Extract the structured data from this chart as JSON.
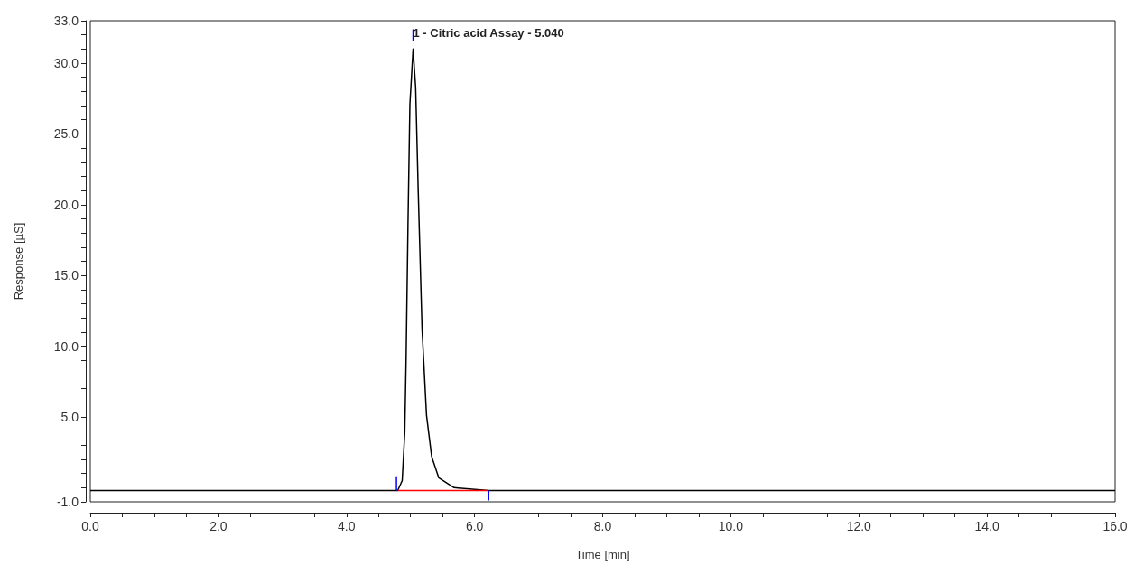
{
  "chart_data": {
    "type": "line",
    "xlabel": "Time [min]",
    "ylabel": "Response [µS]",
    "xlim": [
      0,
      16
    ],
    "ylim": [
      -1,
      33
    ],
    "xticks": [
      {
        "value": 0,
        "label": "0.0"
      },
      {
        "value": 0.5,
        "label": null
      },
      {
        "value": 1,
        "label": null
      },
      {
        "value": 1.5,
        "label": null
      },
      {
        "value": 2,
        "label": "2.0"
      },
      {
        "value": 2.5,
        "label": null
      },
      {
        "value": 3,
        "label": null
      },
      {
        "value": 3.5,
        "label": null
      },
      {
        "value": 4,
        "label": "4.0"
      },
      {
        "value": 4.5,
        "label": null
      },
      {
        "value": 5,
        "label": null
      },
      {
        "value": 5.5,
        "label": null
      },
      {
        "value": 6,
        "label": "6.0"
      },
      {
        "value": 6.5,
        "label": null
      },
      {
        "value": 7,
        "label": null
      },
      {
        "value": 7.5,
        "label": null
      },
      {
        "value": 8,
        "label": "8.0"
      },
      {
        "value": 8.5,
        "label": null
      },
      {
        "value": 9,
        "label": null
      },
      {
        "value": 9.5,
        "label": null
      },
      {
        "value": 10,
        "label": "10.0"
      },
      {
        "value": 10.5,
        "label": null
      },
      {
        "value": 11,
        "label": null
      },
      {
        "value": 11.5,
        "label": null
      },
      {
        "value": 12,
        "label": "12.0"
      },
      {
        "value": 12.5,
        "label": null
      },
      {
        "value": 13,
        "label": null
      },
      {
        "value": 13.5,
        "label": null
      },
      {
        "value": 14,
        "label": "14.0"
      },
      {
        "value": 14.5,
        "label": null
      },
      {
        "value": 15,
        "label": null
      },
      {
        "value": 15.5,
        "label": null
      },
      {
        "value": 16,
        "label": "16.0"
      }
    ],
    "yticks": [
      {
        "value": -1,
        "label": "-1.0"
      },
      {
        "value": 0,
        "label": null
      },
      {
        "value": 1,
        "label": null
      },
      {
        "value": 2,
        "label": null
      },
      {
        "value": 3,
        "label": null
      },
      {
        "value": 4,
        "label": null
      },
      {
        "value": 5,
        "label": "5.0"
      },
      {
        "value": 6,
        "label": null
      },
      {
        "value": 7,
        "label": null
      },
      {
        "value": 8,
        "label": null
      },
      {
        "value": 9,
        "label": null
      },
      {
        "value": 10,
        "label": "10.0"
      },
      {
        "value": 11,
        "label": null
      },
      {
        "value": 12,
        "label": null
      },
      {
        "value": 13,
        "label": null
      },
      {
        "value": 14,
        "label": null
      },
      {
        "value": 15,
        "label": "15.0"
      },
      {
        "value": 16,
        "label": null
      },
      {
        "value": 17,
        "label": null
      },
      {
        "value": 18,
        "label": null
      },
      {
        "value": 19,
        "label": null
      },
      {
        "value": 20,
        "label": "20.0"
      },
      {
        "value": 21,
        "label": null
      },
      {
        "value": 22,
        "label": null
      },
      {
        "value": 23,
        "label": null
      },
      {
        "value": 24,
        "label": null
      },
      {
        "value": 25,
        "label": "25.0"
      },
      {
        "value": 26,
        "label": null
      },
      {
        "value": 27,
        "label": null
      },
      {
        "value": 28,
        "label": null
      },
      {
        "value": 29,
        "label": null
      },
      {
        "value": 30,
        "label": "30.0"
      },
      {
        "value": 31,
        "label": null
      },
      {
        "value": 32,
        "label": null
      },
      {
        "value": 33,
        "label": "33.0"
      }
    ],
    "grid": false,
    "marker": "none",
    "series": [
      {
        "color": "#000000",
        "x": [
          0,
          2,
          4,
          4.8,
          4.87,
          4.91,
          4.93,
          4.96,
          4.99,
          5.04,
          5.08,
          5.12,
          5.18,
          5.25,
          5.33,
          5.44,
          5.68,
          6.22,
          8,
          10,
          12,
          14,
          16
        ],
        "values": [
          -0.2,
          -0.2,
          -0.2,
          -0.2,
          0.5,
          3.9,
          8.8,
          18.5,
          27.1,
          31.0,
          28.3,
          21.0,
          11.2,
          5.1,
          2.2,
          0.7,
          0.0,
          -0.2,
          -0.2,
          -0.2,
          -0.2,
          -0.2,
          -0.2
        ]
      },
      {
        "color": "#ff0000",
        "x": [
          4.8,
          6.22
        ],
        "values": [
          -0.2,
          -0.2
        ]
      },
      {
        "color": "#0000ff",
        "x": [
          4.78,
          4.78
        ],
        "values": [
          -0.2,
          0.8
        ]
      },
      {
        "color": "#0000ff",
        "x": [
          6.22,
          6.22
        ],
        "values": [
          -0.2,
          -0.9
        ]
      },
      {
        "color": "#0000ff",
        "x": [
          5.04,
          5.04
        ],
        "values": [
          31.6,
          32.4
        ]
      }
    ],
    "annotations": [
      {
        "text": "1 - Citric acid Assay - 5.040",
        "x": 5.04,
        "y": 31.0
      }
    ]
  }
}
